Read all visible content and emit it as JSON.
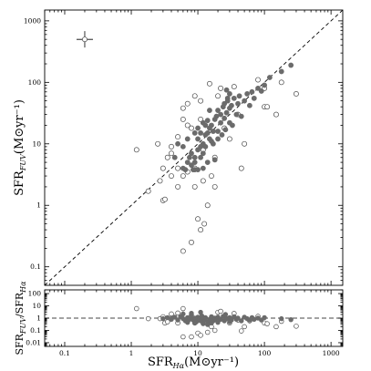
{
  "chart_data": [
    {
      "type": "scatter",
      "title": "",
      "xscale": "log",
      "yscale": "log",
      "xlim": [
        0.05,
        1500
      ],
      "ylim": [
        0.05,
        1500
      ],
      "ylabel": {
        "main": "SFR",
        "sub": "FUV",
        "unit": "(M⊙yr⁻¹)"
      },
      "xticks": [
        {
          "v": 0.1,
          "label": "0.1"
        },
        {
          "v": 1,
          "label": "1"
        },
        {
          "v": 10,
          "label": "10"
        },
        {
          "v": 100,
          "label": "100"
        },
        {
          "v": 1000,
          "label": "1000"
        }
      ],
      "yticks": [
        {
          "v": 0.1,
          "label": "0.1"
        },
        {
          "v": 1,
          "label": "1"
        },
        {
          "v": 10,
          "label": "10"
        },
        {
          "v": 100,
          "label": "100"
        },
        {
          "v": 1000,
          "label": "1000"
        }
      ],
      "reference_line": "y = x",
      "typical_error_cross": {
        "x": 0.2,
        "y": 500
      },
      "series": [
        {
          "marker": "filled",
          "color": "#6b6b6b",
          "points": [
            [
              6,
              4
            ],
            [
              7,
              5
            ],
            [
              7.5,
              6
            ],
            [
              8,
              4.5
            ],
            [
              8,
              7
            ],
            [
              9,
              5
            ],
            [
              9,
              6
            ],
            [
              10,
              8
            ],
            [
              10,
              12
            ],
            [
              11,
              6
            ],
            [
              11,
              9
            ],
            [
              12,
              10
            ],
            [
              12,
              7
            ],
            [
              13,
              14
            ],
            [
              13,
              9
            ],
            [
              14,
              5
            ],
            [
              14,
              15
            ],
            [
              15,
              12
            ],
            [
              15,
              18
            ],
            [
              16,
              20
            ],
            [
              17,
              10
            ],
            [
              18,
              25
            ],
            [
              19,
              28
            ],
            [
              20,
              16
            ],
            [
              20,
              35
            ],
            [
              22,
              22
            ],
            [
              22,
              30
            ],
            [
              24,
              40
            ],
            [
              25,
              26
            ],
            [
              25,
              45
            ],
            [
              27,
              32
            ],
            [
              28,
              50
            ],
            [
              30,
              22
            ],
            [
              30,
              38
            ],
            [
              32,
              42
            ],
            [
              35,
              55
            ],
            [
              38,
              30
            ],
            [
              40,
              45
            ],
            [
              42,
              60
            ],
            [
              45,
              28
            ],
            [
              50,
              50
            ],
            [
              55,
              65
            ],
            [
              60,
              42
            ],
            [
              65,
              70
            ],
            [
              70,
              55
            ],
            [
              80,
              80
            ],
            [
              90,
              72
            ],
            [
              100,
              90
            ],
            [
              120,
              120
            ],
            [
              180,
              150
            ],
            [
              250,
              190
            ],
            [
              9,
              3.8
            ],
            [
              10,
              18
            ],
            [
              6.5,
              3.8
            ],
            [
              8.5,
              3.8
            ],
            [
              18,
              5.5
            ],
            [
              20,
              12
            ],
            [
              23,
              14
            ],
            [
              16,
              11
            ],
            [
              11,
              15
            ],
            [
              13,
              20
            ],
            [
              14,
              24
            ],
            [
              15,
              35
            ],
            [
              17,
              16
            ],
            [
              26,
              17
            ],
            [
              6,
              9
            ],
            [
              5,
              10
            ],
            [
              4.5,
              6
            ],
            [
              7,
              12
            ],
            [
              9,
              15
            ],
            [
              12,
              22
            ],
            [
              27,
              75
            ],
            [
              28,
              55
            ],
            [
              30,
              65
            ],
            [
              33,
              20
            ],
            [
              12,
              4
            ],
            [
              10,
              3.8
            ]
          ]
        },
        {
          "marker": "open",
          "color": "#ffffff",
          "points": [
            [
              0.2,
              500
            ],
            [
              1.2,
              8
            ],
            [
              1.8,
              1.7
            ],
            [
              2.5,
              10
            ],
            [
              3,
              4
            ],
            [
              3,
              1.2
            ],
            [
              3.2,
              1.25
            ],
            [
              3.5,
              6
            ],
            [
              4,
              3
            ],
            [
              4,
              7
            ],
            [
              5,
              2
            ],
            [
              5,
              4
            ],
            [
              6,
              38
            ],
            [
              6,
              3
            ],
            [
              7,
              3.5
            ],
            [
              7,
              20
            ],
            [
              8,
              18
            ],
            [
              9,
              4
            ],
            [
              9,
              60
            ],
            [
              10,
              0.6
            ],
            [
              11,
              0.4
            ],
            [
              11,
              25
            ],
            [
              12,
              8
            ],
            [
              12.5,
              0.5
            ],
            [
              14,
              1
            ],
            [
              16,
              3
            ],
            [
              18,
              2
            ],
            [
              20,
              60
            ],
            [
              22,
              80
            ],
            [
              25,
              18
            ],
            [
              30,
              12
            ],
            [
              35,
              85
            ],
            [
              40,
              30
            ],
            [
              45,
              4
            ],
            [
              50,
              10
            ],
            [
              80,
              110
            ],
            [
              100,
              40
            ],
            [
              100,
              80
            ],
            [
              110,
              40
            ],
            [
              150,
              30
            ],
            [
              180,
              100
            ],
            [
              300,
              65
            ],
            [
              6,
              0.18
            ],
            [
              8,
              0.25
            ],
            [
              4,
              9
            ],
            [
              5,
              13
            ],
            [
              6,
              25
            ],
            [
              7,
              45
            ],
            [
              11,
              50
            ],
            [
              15,
              95
            ],
            [
              18,
              6
            ],
            [
              2.7,
              2.5
            ],
            [
              9,
              2
            ],
            [
              12,
              2.5
            ]
          ]
        }
      ]
    },
    {
      "type": "scatter",
      "title": "",
      "xscale": "log",
      "yscale": "log",
      "xlim": [
        0.05,
        1500
      ],
      "ylim": [
        0.005,
        200
      ],
      "xlabel": {
        "main": "SFR",
        "sub": "Hα",
        "unit": "(M⊙yr⁻¹)"
      },
      "ylabel": {
        "main": "SFR",
        "sub": "FUV",
        "sep": "/SFR",
        "sub2": "Hα"
      },
      "xticks": [
        {
          "v": 0.1,
          "label": "0.1"
        },
        {
          "v": 1,
          "label": "1"
        },
        {
          "v": 10,
          "label": "10"
        },
        {
          "v": 100,
          "label": "100"
        },
        {
          "v": 1000,
          "label": "1000"
        }
      ],
      "yticks": [
        {
          "v": 0.01,
          "label": "0.01"
        },
        {
          "v": 0.1,
          "label": "0.1"
        },
        {
          "v": 1,
          "label": "1"
        },
        {
          "v": 10,
          "label": "10"
        },
        {
          "v": 100,
          "label": "100"
        }
      ],
      "reference_line": "y = 1",
      "series": [
        {
          "marker": "filled",
          "color": "#6b6b6b",
          "points": [
            [
              3,
              0.9
            ],
            [
              3.5,
              1.1
            ],
            [
              4,
              0.8
            ],
            [
              4.5,
              1.2
            ],
            [
              5,
              0.7
            ],
            [
              5.5,
              1.3
            ],
            [
              6,
              0.9
            ],
            [
              6.5,
              0.6
            ],
            [
              7,
              1.1
            ],
            [
              7.5,
              0.8
            ],
            [
              8,
              1.4
            ],
            [
              8.5,
              0.7
            ],
            [
              9,
              1.0
            ],
            [
              9.5,
              0.5
            ],
            [
              10,
              1.2
            ],
            [
              10.5,
              0.8
            ],
            [
              11,
              0.6
            ],
            [
              11.5,
              1.5
            ],
            [
              12,
              0.9
            ],
            [
              12.5,
              0.7
            ],
            [
              13,
              1.1
            ],
            [
              14,
              0.5
            ],
            [
              15,
              0.8
            ],
            [
              16,
              1.3
            ],
            [
              17,
              0.6
            ],
            [
              18,
              1.0
            ],
            [
              19,
              0.7
            ],
            [
              20,
              1.2
            ],
            [
              22,
              0.8
            ],
            [
              24,
              1.4
            ],
            [
              25,
              0.6
            ],
            [
              27,
              0.9
            ],
            [
              30,
              1.1
            ],
            [
              32,
              0.7
            ],
            [
              35,
              1.3
            ],
            [
              38,
              0.8
            ],
            [
              40,
              1.0
            ],
            [
              45,
              0.6
            ],
            [
              50,
              1.2
            ],
            [
              55,
              0.9
            ],
            [
              60,
              0.7
            ],
            [
              65,
              1.1
            ],
            [
              70,
              0.8
            ],
            [
              80,
              1.0
            ],
            [
              90,
              0.7
            ],
            [
              100,
              1.1
            ],
            [
              180,
              0.9
            ],
            [
              250,
              0.75
            ],
            [
              6,
              2.2
            ],
            [
              8,
              2.5
            ],
            [
              11,
              3.0
            ],
            [
              14,
              0.3
            ],
            [
              9,
              0.4
            ],
            [
              20,
              0.45
            ],
            [
              26,
              2.0
            ],
            [
              12,
              0.35
            ],
            [
              16,
              0.4
            ],
            [
              30,
              0.5
            ],
            [
              7,
              0.45
            ]
          ]
        },
        {
          "marker": "open",
          "color": "#ffffff",
          "points": [
            [
              1.2,
              6
            ],
            [
              1.8,
              0.9
            ],
            [
              2.7,
              0.9
            ],
            [
              3,
              1.3
            ],
            [
              3.2,
              0.4
            ],
            [
              3.5,
              0.5
            ],
            [
              4,
              0.9
            ],
            [
              5,
              0.4
            ],
            [
              6,
              6
            ],
            [
              7,
              0.5
            ],
            [
              8,
              1.8
            ],
            [
              9,
              0.4
            ],
            [
              10,
              0.06
            ],
            [
              11,
              0.04
            ],
            [
              12,
              0.6
            ],
            [
              14,
              0.07
            ],
            [
              16,
              0.2
            ],
            [
              18,
              0.1
            ],
            [
              20,
              3
            ],
            [
              22,
              3.6
            ],
            [
              25,
              0.7
            ],
            [
              30,
              0.4
            ],
            [
              35,
              2.4
            ],
            [
              40,
              0.7
            ],
            [
              45,
              0.09
            ],
            [
              50,
              0.2
            ],
            [
              60,
              0.6
            ],
            [
              80,
              1.4
            ],
            [
              100,
              0.4
            ],
            [
              110,
              0.35
            ],
            [
              150,
              0.2
            ],
            [
              180,
              0.55
            ],
            [
              300,
              0.22
            ],
            [
              6,
              0.03
            ],
            [
              8,
              0.03
            ],
            [
              4,
              2.2
            ],
            [
              5,
              2.6
            ]
          ]
        }
      ]
    }
  ]
}
